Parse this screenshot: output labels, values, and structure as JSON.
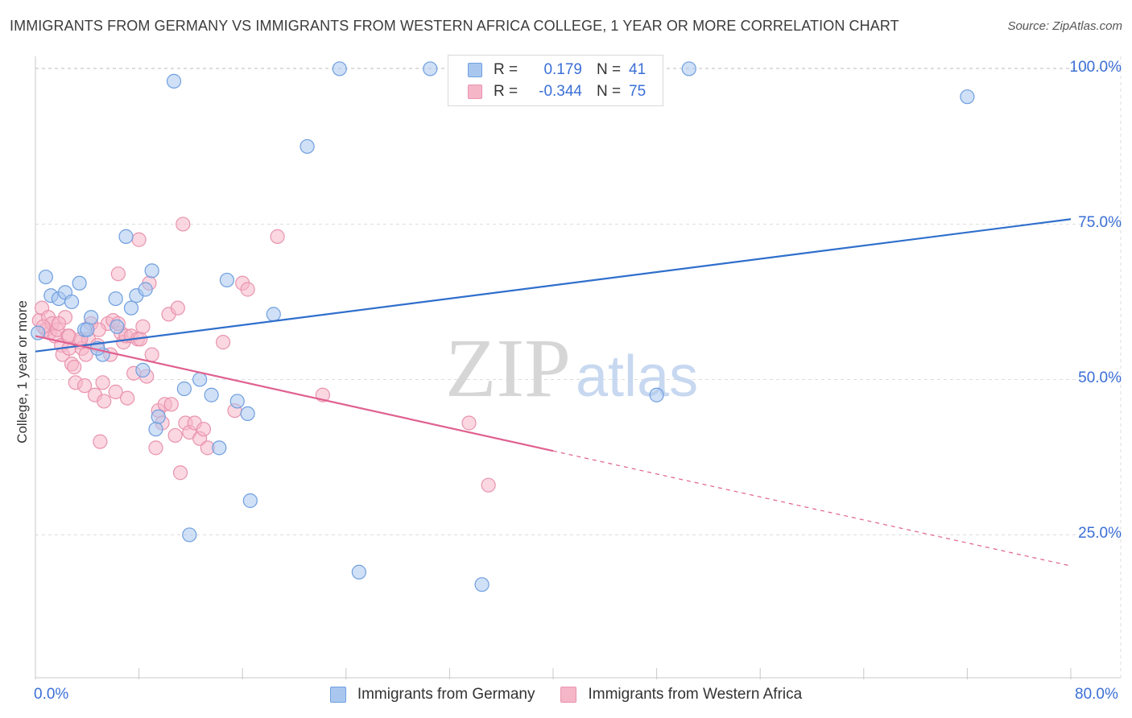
{
  "header": {
    "title": "IMMIGRANTS FROM GERMANY VS IMMIGRANTS FROM WESTERN AFRICA COLLEGE, 1 YEAR OR MORE CORRELATION CHART",
    "source": "Source: ZipAtlas.com"
  },
  "legend": {
    "series1": {
      "r_label": "R =",
      "r_value": "0.179",
      "n_label": "N =",
      "n_value": "41"
    },
    "series2": {
      "r_label": "R =",
      "r_value": "-0.344",
      "n_label": "N =",
      "n_value": "75"
    }
  },
  "bottom_legend": {
    "series1": "Immigrants from Germany",
    "series2": "Immigrants from Western Africa"
  },
  "watermark": {
    "zip": "ZIP",
    "atlas": "atlas"
  },
  "colors": {
    "blue_fill": "#a9c7ee",
    "blue_stroke": "#6f9fe0",
    "blue_line": "#2f6fcc",
    "pink_fill": "#f5b6c8",
    "pink_stroke": "#e993ae",
    "pink_line": "#e0608f",
    "tick_text": "#3b6fd6",
    "grid": "#dddddd"
  },
  "chart_data": {
    "type": "scatter",
    "title": "IMMIGRANTS FROM GERMANY VS IMMIGRANTS FROM WESTERN AFRICA COLLEGE, 1 YEAR OR MORE CORRELATION CHART",
    "xlabel": "",
    "ylabel": "College, 1 year or more",
    "xlim": [
      0,
      80
    ],
    "ylim": [
      2,
      102
    ],
    "x_tick_labels": [
      "0.0%",
      "80.0%"
    ],
    "y_ticks": [
      25,
      50,
      75,
      100
    ],
    "y_tick_labels": [
      "25.0%",
      "50.0%",
      "75.0%",
      "100.0%"
    ],
    "series": [
      {
        "name": "Immigrants from Germany",
        "color": "blue",
        "r": 0.179,
        "n": 41,
        "trend": {
          "x0": 0,
          "y0": 54.5,
          "x1": 80,
          "y1": 75.8,
          "solid_until": 80
        },
        "points": [
          [
            0.2,
            57.5
          ],
          [
            0.8,
            66.5
          ],
          [
            1.2,
            63.5
          ],
          [
            1.8,
            63
          ],
          [
            2.3,
            64
          ],
          [
            2.8,
            62.5
          ],
          [
            3.4,
            65.5
          ],
          [
            3.8,
            58
          ],
          [
            4.3,
            60
          ],
          [
            5.2,
            54
          ],
          [
            6.2,
            63
          ],
          [
            6.3,
            58.5
          ],
          [
            7.0,
            73
          ],
          [
            7.4,
            61.5
          ],
          [
            7.8,
            63.5
          ],
          [
            8.5,
            64.5
          ],
          [
            9.0,
            67.5
          ],
          [
            8.3,
            51.5
          ],
          [
            9.5,
            44
          ],
          [
            9.3,
            42
          ],
          [
            10.7,
            98
          ],
          [
            11.5,
            48.5
          ],
          [
            11.9,
            25
          ],
          [
            12.7,
            50
          ],
          [
            13.6,
            47.5
          ],
          [
            14.2,
            39
          ],
          [
            14.8,
            66
          ],
          [
            15.6,
            46.5
          ],
          [
            16.4,
            44.5
          ],
          [
            16.6,
            30.5
          ],
          [
            18.4,
            60.5
          ],
          [
            21.0,
            87.5
          ],
          [
            23.5,
            100
          ],
          [
            25.0,
            19
          ],
          [
            30.5,
            100
          ],
          [
            34.5,
            17
          ],
          [
            48.0,
            47.5
          ],
          [
            50.5,
            100
          ],
          [
            72.0,
            95.5
          ],
          [
            4.8,
            55
          ],
          [
            4.0,
            58
          ]
        ]
      },
      {
        "name": "Immigrants from Western Africa",
        "color": "pink",
        "r": -0.344,
        "n": 75,
        "trend": {
          "x0": 0,
          "y0": 57,
          "x1": 80,
          "y1": 20,
          "solid_until": 40
        },
        "points": [
          [
            0.3,
            59.5
          ],
          [
            0.5,
            61.5
          ],
          [
            0.8,
            58
          ],
          [
            1.0,
            60
          ],
          [
            1.1,
            57.5
          ],
          [
            1.3,
            59
          ],
          [
            1.5,
            57
          ],
          [
            1.7,
            58
          ],
          [
            2.0,
            55.5
          ],
          [
            2.1,
            54
          ],
          [
            2.3,
            60
          ],
          [
            2.5,
            57
          ],
          [
            2.6,
            55
          ],
          [
            2.8,
            52.5
          ],
          [
            3.0,
            52
          ],
          [
            3.1,
            49.5
          ],
          [
            3.4,
            56
          ],
          [
            3.6,
            55
          ],
          [
            3.8,
            49
          ],
          [
            3.9,
            54
          ],
          [
            4.1,
            56.5
          ],
          [
            4.3,
            59
          ],
          [
            4.6,
            47.5
          ],
          [
            4.8,
            55.5
          ],
          [
            5.0,
            40
          ],
          [
            5.2,
            49.5
          ],
          [
            5.3,
            46.5
          ],
          [
            5.6,
            59
          ],
          [
            5.8,
            54
          ],
          [
            6.0,
            59.5
          ],
          [
            6.2,
            48
          ],
          [
            6.4,
            67
          ],
          [
            6.6,
            57.5
          ],
          [
            6.8,
            56
          ],
          [
            7.0,
            57
          ],
          [
            7.1,
            47
          ],
          [
            7.4,
            57
          ],
          [
            7.6,
            51
          ],
          [
            7.9,
            56.5
          ],
          [
            8.1,
            56.5
          ],
          [
            8.3,
            58.5
          ],
          [
            8.6,
            50.5
          ],
          [
            8.8,
            65.5
          ],
          [
            9.0,
            54
          ],
          [
            9.3,
            39
          ],
          [
            9.5,
            45
          ],
          [
            9.8,
            43
          ],
          [
            10.0,
            46
          ],
          [
            10.3,
            60.5
          ],
          [
            10.5,
            46
          ],
          [
            10.8,
            41
          ],
          [
            11.0,
            61.5
          ],
          [
            11.2,
            35
          ],
          [
            11.4,
            75
          ],
          [
            11.6,
            43
          ],
          [
            11.9,
            41.5
          ],
          [
            12.3,
            43
          ],
          [
            12.7,
            40.5
          ],
          [
            13.0,
            42
          ],
          [
            13.3,
            39
          ],
          [
            14.5,
            56
          ],
          [
            15.4,
            45
          ],
          [
            16.0,
            65.5
          ],
          [
            16.4,
            64.5
          ],
          [
            18.7,
            73
          ],
          [
            22.2,
            47.5
          ],
          [
            33.5,
            43
          ],
          [
            35.0,
            33
          ],
          [
            1.8,
            59
          ],
          [
            2.6,
            57
          ],
          [
            3.5,
            56.5
          ],
          [
            6.4,
            59
          ],
          [
            8.0,
            72.5
          ],
          [
            0.6,
            58.5
          ],
          [
            4.9,
            58
          ]
        ]
      }
    ]
  }
}
